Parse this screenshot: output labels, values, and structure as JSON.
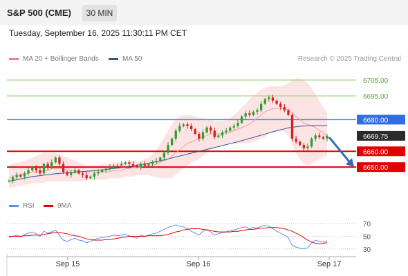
{
  "header": {
    "title": "S&P 500 (CME)",
    "timeframe": "30 MIN"
  },
  "timestamp": "Tuesday, September 16, 2025 11:30:11 PM CET",
  "legend": {
    "items": [
      {
        "label": "MA 20 + Bollinger Bands",
        "color": "#f08080"
      },
      {
        "label": "MA 50",
        "color": "#2f5597"
      }
    ]
  },
  "research": "Research © 2025 Trading Central",
  "rsi_legend": {
    "items": [
      {
        "label": "RSI",
        "color": "#5b8def"
      },
      {
        "label": "9MA",
        "color": "#e00000"
      }
    ]
  },
  "colors": {
    "up": "#2e9e2e",
    "down": "#d62020",
    "ma20": "#f4a0a0",
    "ma50": "#2f5597",
    "band": "#fde4e4",
    "target": "#2f6db5",
    "rsi": "#5b8def",
    "rsi_ma": "#e00000"
  },
  "chart_data": [
    {
      "type": "candlestick",
      "ylim": [
        6637,
        6712
      ],
      "x_ticks": [
        "Sep 15",
        "Sep 16",
        "Sep 17"
      ],
      "levels": [
        {
          "value": 6705.0,
          "label": "6705.00",
          "kind": "resistance"
        },
        {
          "value": 6695.0,
          "label": "6695.00",
          "kind": "resistance"
        },
        {
          "value": 6680.0,
          "label": "6680.00",
          "kind": "pivot"
        },
        {
          "value": 6669.75,
          "label": "6669.75",
          "kind": "last"
        },
        {
          "value": 6660.0,
          "label": "6660.00",
          "kind": "support"
        },
        {
          "value": 6650.0,
          "label": "6650.00",
          "kind": "support"
        }
      ],
      "closes": [
        6641.5,
        6643.5,
        6645,
        6644,
        6646,
        6648,
        6650,
        6648,
        6646,
        6652,
        6650,
        6653,
        6656,
        6652,
        6647,
        6645,
        6647,
        6648,
        6646,
        6645,
        6643,
        6644,
        6646,
        6647,
        6648,
        6649,
        6650,
        6651,
        6651,
        6652,
        6653,
        6652,
        6651,
        6650,
        6652,
        6651,
        6652,
        6653,
        6654,
        6656,
        6659,
        6664,
        6668,
        6673,
        6676,
        6677,
        6676,
        6674,
        6671,
        6668,
        6672,
        6675,
        6673,
        6669,
        6670,
        6672,
        6673,
        6675,
        6676,
        6678,
        6682,
        6684,
        6683,
        6685,
        6686,
        6690,
        6693,
        6694,
        6692,
        6690,
        6688,
        6686,
        6683,
        6668,
        6666,
        6664,
        6662,
        6663,
        6668,
        6670,
        6669,
        6668,
        6669.75
      ],
      "ma20": [
        6643,
        6644,
        6645,
        6645,
        6646,
        6646,
        6647,
        6647,
        6647,
        6648,
        6648,
        6649,
        6649,
        6649,
        6649,
        6648,
        6648,
        6648,
        6647,
        6647,
        6647,
        6647,
        6647,
        6647,
        6647,
        6647,
        6647,
        6648,
        6648,
        6648,
        6649,
        6649,
        6650,
        6650,
        6650,
        6651,
        6651,
        6651,
        6652,
        6653,
        6654,
        6655,
        6657,
        6659,
        6661,
        6663,
        6665,
        6666,
        6667,
        6668,
        6669,
        6670,
        6671,
        6671,
        6671,
        6671,
        6672,
        6672,
        6673,
        6674,
        6675,
        6676,
        6677,
        6679,
        6681,
        6683,
        6685,
        6686,
        6687,
        6687,
        6687,
        6687,
        6686,
        6684,
        6682,
        6680,
        6678,
        6677,
        6676,
        6675,
        6673,
        6672,
        6669
      ],
      "bb_upper": [
        6651,
        6652,
        6653,
        6653,
        6654,
        6655,
        6656,
        6657,
        6658,
        6659,
        6659,
        6659,
        6659,
        6658,
        6657,
        6656,
        6655,
        6654,
        6653,
        6652,
        6651,
        6651,
        6651,
        6651,
        6652,
        6652,
        6652,
        6653,
        6653,
        6653,
        6653,
        6653,
        6654,
        6654,
        6654,
        6655,
        6656,
        6658,
        6661,
        6665,
        6669,
        6673,
        6677,
        6680,
        6682,
        6683,
        6683,
        6683,
        6682,
        6681,
        6681,
        6680,
        6680,
        6679,
        6679,
        6679,
        6680,
        6681,
        6683,
        6685,
        6688,
        6690,
        6693,
        6695,
        6697,
        6699,
        6700,
        6701,
        6701,
        6701,
        6701,
        6702,
        6703,
        6705,
        6706,
        6706,
        6705,
        6703,
        6700,
        6696,
        6692,
        6688,
        6684
      ],
      "bb_lower": [
        6637,
        6637,
        6638,
        6638,
        6639,
        6639,
        6640,
        6640,
        6640,
        6640,
        6641,
        6641,
        6641,
        6641,
        6641,
        6641,
        6641,
        6641,
        6641,
        6641,
        6642,
        6642,
        6642,
        6642,
        6642,
        6642,
        6643,
        6643,
        6643,
        6643,
        6644,
        6644,
        6644,
        6645,
        6645,
        6645,
        6645,
        6644,
        6644,
        6643,
        6643,
        6643,
        6643,
        6645,
        6647,
        6649,
        6651,
        6653,
        6654,
        6655,
        6657,
        6659,
        6661,
        6662,
        6663,
        6664,
        6664,
        6665,
        6665,
        6665,
        6665,
        6665,
        6665,
        6666,
        6667,
        6668,
        6669,
        6671,
        6672,
        6673,
        6673,
        6672,
        6670,
        6664,
        6659,
        6655,
        6652,
        6651,
        6652,
        6654,
        6655,
        6656,
        6657
      ],
      "ma50": [
        6641,
        6641.5,
        6642,
        6642.5,
        6643,
        6643.5,
        6644,
        6644.3,
        6644.6,
        6645,
        6645.2,
        6645.5,
        6645.8,
        6646,
        6646.2,
        6646.4,
        6646.6,
        6646.8,
        6647,
        6647.2,
        6647.4,
        6647.6,
        6647.8,
        6648,
        6648.2,
        6648.5,
        6648.8,
        6649.1,
        6649.4,
        6649.7,
        6650,
        6650.4,
        6650.8,
        6651.2,
        6651.6,
        6652,
        6652.5,
        6653,
        6653.5,
        6654,
        6654.6,
        6655.2,
        6655.8,
        6656.4,
        6657,
        6657.6,
        6658.2,
        6658.8,
        6659.4,
        6660,
        6660.6,
        6661.2,
        6661.8,
        6662.4,
        6663,
        6663.6,
        6664.2,
        6664.8,
        6665.4,
        6666,
        6666.7,
        6667.4,
        6668.1,
        6668.8,
        6669.5,
        6670.2,
        6670.9,
        6671.6,
        6672.3,
        6673,
        6673.6,
        6674.2,
        6674.8,
        6675.2,
        6675.5,
        6675.8,
        6676,
        6676.1,
        6676.2,
        6676.3,
        6676.3,
        6676.3,
        6676.3
      ]
    },
    {
      "type": "line",
      "title": "RSI",
      "ylim": [
        20,
        80
      ],
      "y_ticks": [
        70,
        50,
        30
      ],
      "series": [
        {
          "name": "RSI",
          "values": [
            48,
            50,
            52,
            49,
            53,
            55,
            57,
            54,
            50,
            58,
            55,
            57,
            60,
            52,
            44,
            42,
            45,
            47,
            44,
            43,
            40,
            42,
            45,
            47,
            48,
            49,
            50,
            52,
            51,
            52,
            53,
            51,
            49,
            47,
            52,
            50,
            52,
            54,
            55,
            58,
            61,
            64,
            66,
            68,
            66,
            65,
            62,
            58,
            55,
            52,
            58,
            61,
            57,
            52,
            54,
            56,
            57,
            59,
            60,
            62,
            64,
            65,
            62,
            64,
            63,
            66,
            67,
            66,
            62,
            58,
            55,
            52,
            48,
            36,
            33,
            31,
            30,
            32,
            40,
            44,
            42,
            41,
            43
          ]
        },
        {
          "name": "9MA",
          "values": [
            50,
            50,
            50,
            50,
            51,
            51,
            52,
            52,
            52,
            53,
            54,
            55,
            56,
            56,
            55,
            54,
            52,
            51,
            50,
            48,
            46,
            45,
            44,
            44,
            44,
            45,
            45,
            46,
            47,
            48,
            49,
            50,
            50,
            50,
            50,
            50,
            51,
            51,
            51,
            51,
            52,
            53,
            55,
            57,
            58,
            60,
            61,
            62,
            62,
            62,
            61,
            60,
            59,
            58,
            57,
            57,
            57,
            57,
            58,
            58,
            59,
            60,
            61,
            61,
            62,
            63,
            63,
            64,
            64,
            64,
            63,
            62,
            60,
            58,
            55,
            52,
            48,
            44,
            41,
            39,
            38,
            39,
            40
          ]
        }
      ]
    }
  ]
}
